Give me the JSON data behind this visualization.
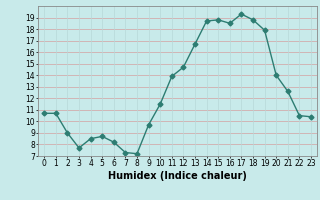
{
  "x": [
    0,
    1,
    2,
    3,
    4,
    5,
    6,
    7,
    8,
    9,
    10,
    11,
    12,
    13,
    14,
    15,
    16,
    17,
    18,
    19,
    20,
    21,
    22,
    23
  ],
  "y": [
    10.7,
    10.7,
    9.0,
    7.7,
    8.5,
    8.7,
    8.2,
    7.3,
    7.2,
    9.7,
    11.5,
    13.9,
    14.7,
    16.7,
    18.7,
    18.8,
    18.5,
    19.3,
    18.8,
    17.9,
    14.0,
    12.6,
    10.5,
    10.4
  ],
  "line_color": "#2d7d72",
  "marker": "D",
  "marker_size": 2.5,
  "xlabel": "Humidex (Indice chaleur)",
  "xlim": [
    -0.5,
    23.5
  ],
  "ylim": [
    7,
    20
  ],
  "yticks": [
    7,
    8,
    9,
    10,
    11,
    12,
    13,
    14,
    15,
    16,
    17,
    18,
    19
  ],
  "xticks": [
    0,
    1,
    2,
    3,
    4,
    5,
    6,
    7,
    8,
    9,
    10,
    11,
    12,
    13,
    14,
    15,
    16,
    17,
    18,
    19,
    20,
    21,
    22,
    23
  ],
  "bg_color": "#c8eaea",
  "grid_color_h": "#d4a0a0",
  "grid_color_v": "#b8d8d8",
  "tick_fontsize": 5.5,
  "xlabel_fontsize": 7.0
}
